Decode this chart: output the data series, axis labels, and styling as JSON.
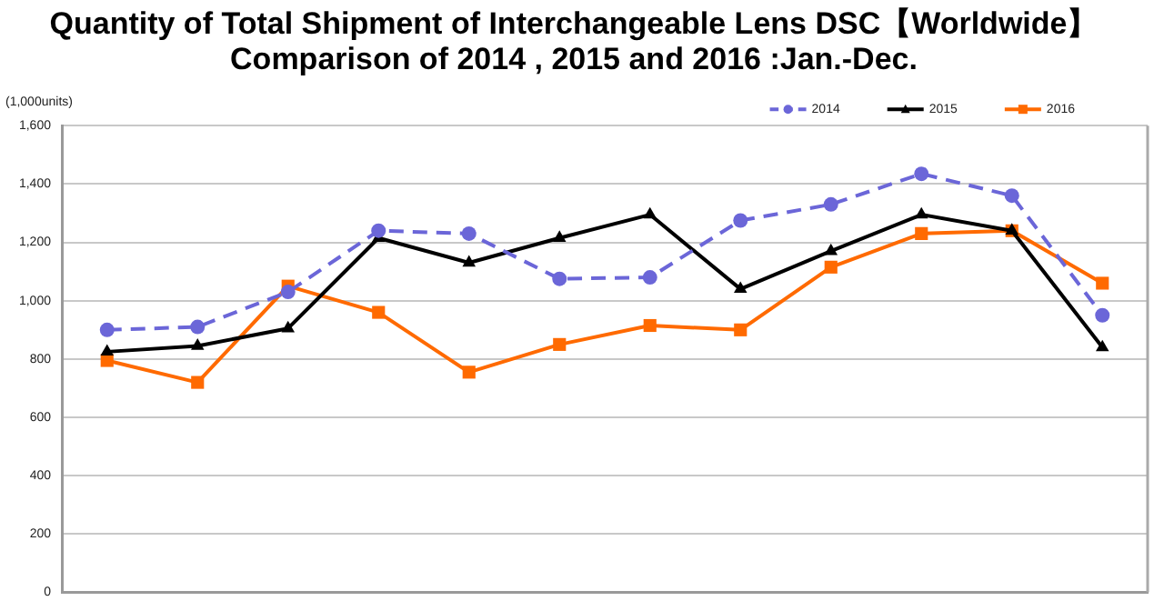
{
  "chart_data": {
    "type": "line",
    "title": "Quantity of Total Shipment of Interchangeable Lens DSC【Worldwide】\nComparison of 2014 , 2015 and 2016 :Jan.-Dec.",
    "ylabel": "(1,000units)",
    "categories": [
      null,
      null,
      null,
      null,
      null,
      null,
      null,
      null,
      null,
      null,
      null,
      null
    ],
    "series": [
      {
        "name": "2014",
        "color": "#6b66d8",
        "marker": "circle",
        "line_style": "dashed",
        "values": [
          900,
          910,
          1030,
          1240,
          1230,
          1075,
          1080,
          1275,
          1330,
          1435,
          1360,
          950
        ]
      },
      {
        "name": "2015",
        "color": "#000000",
        "marker": "triangle",
        "line_style": "solid",
        "values": [
          825,
          845,
          905,
          1215,
          1130,
          1215,
          1295,
          1040,
          1170,
          1295,
          1240,
          840
        ]
      },
      {
        "name": "2016",
        "color": "#ff6a00",
        "marker": "square",
        "line_style": "solid",
        "values": [
          795,
          720,
          1050,
          960,
          755,
          850,
          915,
          900,
          1115,
          1230,
          1240,
          1060
        ]
      }
    ],
    "ylim": [
      0,
      1600
    ],
    "yticks": [
      {
        "value": 0,
        "label": "0"
      },
      {
        "value": 200,
        "label": "200"
      },
      {
        "value": 400,
        "label": "400"
      },
      {
        "value": 600,
        "label": "600"
      },
      {
        "value": 800,
        "label": "800"
      },
      {
        "value": 1000,
        "label": "1,000"
      },
      {
        "value": 1200,
        "label": "1,200"
      },
      {
        "value": 1400,
        "label": "1,400"
      },
      {
        "value": 1600,
        "label": "1,600"
      }
    ],
    "grid": "y",
    "legend": "top right",
    "tick_labels": "y"
  }
}
